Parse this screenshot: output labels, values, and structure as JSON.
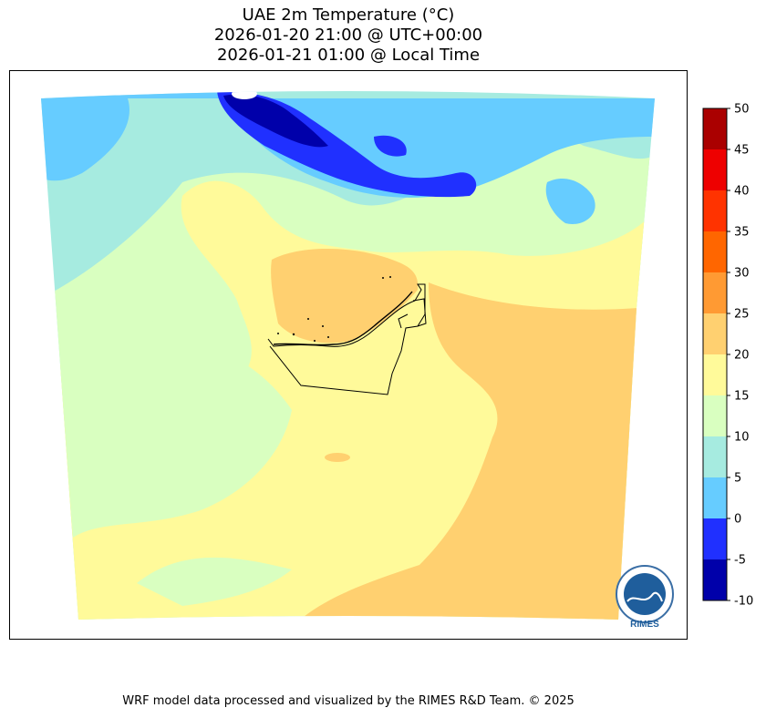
{
  "title": {
    "line1": "UAE 2m Temperature (°C)",
    "line2": "2026-01-20 21:00 @ UTC+00:00",
    "line3": "2026-01-21 01:00 @ Local Time"
  },
  "colorbar": {
    "ticks": [
      "50",
      "45",
      "40",
      "35",
      "30",
      "25",
      "20",
      "15",
      "10",
      "5",
      "0",
      "-5",
      "-10"
    ],
    "bins": [
      {
        "from": -10,
        "to": -5,
        "color": "#0000aa"
      },
      {
        "from": -5,
        "to": 0,
        "color": "#2030ff"
      },
      {
        "from": 0,
        "to": 5,
        "color": "#66ccff"
      },
      {
        "from": 5,
        "to": 10,
        "color": "#a6ebe0"
      },
      {
        "from": 10,
        "to": 15,
        "color": "#d9ffc0"
      },
      {
        "from": 15,
        "to": 20,
        "color": "#fffa9a"
      },
      {
        "from": 20,
        "to": 25,
        "color": "#ffd070"
      },
      {
        "from": 25,
        "to": 30,
        "color": "#ff9a33"
      },
      {
        "from": 30,
        "to": 35,
        "color": "#ff6600"
      },
      {
        "from": 35,
        "to": 40,
        "color": "#ff3300"
      },
      {
        "from": 40,
        "to": 45,
        "color": "#ee0000"
      },
      {
        "from": 45,
        "to": 50,
        "color": "#aa0000"
      }
    ]
  },
  "logo": {
    "text": "RIMES"
  },
  "footer": "WRF model data processed and visualized by the RIMES R&D Team. © 2025"
}
